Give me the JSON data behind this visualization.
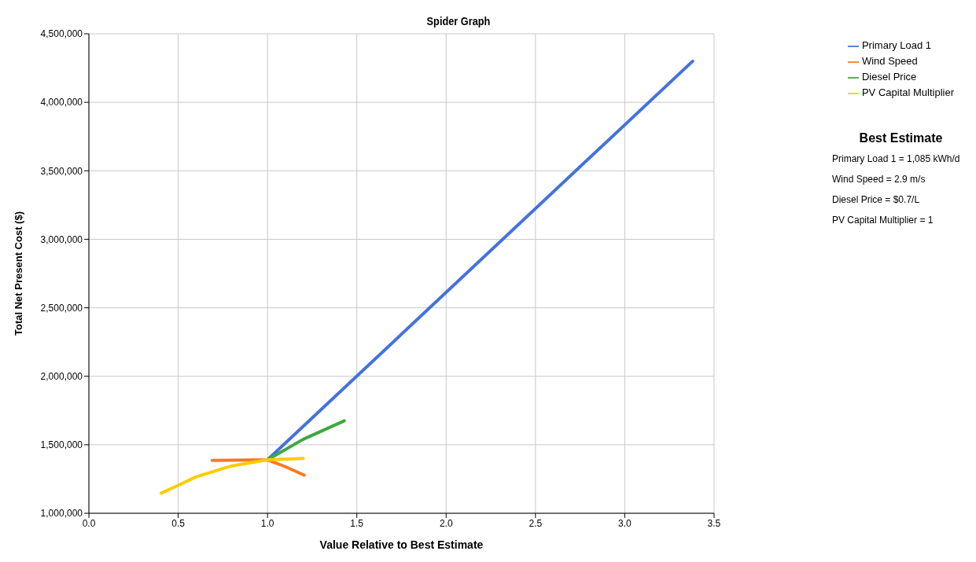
{
  "chart_data": {
    "type": "line",
    "title": "Spider Graph",
    "xlabel": "Value Relative to Best Estimate",
    "ylabel": "Total Net Present Cost ($)",
    "series": [
      {
        "name": "Primary Load 1",
        "color": "#4472dd",
        "x": [
          1.0,
          3.38
        ],
        "values": [
          1390000,
          4300000
        ]
      },
      {
        "name": "Wind Speed",
        "color": "#ff7722",
        "x": [
          0.69,
          1.0,
          1.1,
          1.205
        ],
        "values": [
          1386000,
          1390000,
          1340000,
          1278000
        ]
      },
      {
        "name": "Diesel Price",
        "color": "#3fa83f",
        "x": [
          1.0,
          1.2,
          1.43
        ],
        "values": [
          1390000,
          1540000,
          1675000
        ]
      },
      {
        "name": "PV Capital Multiplier",
        "color": "#ffcc00",
        "x": [
          0.405,
          0.5,
          0.6,
          0.8,
          1.0,
          1.2
        ],
        "values": [
          1147000,
          1204000,
          1266000,
          1346000,
          1390000,
          1400000
        ]
      }
    ],
    "xlim": [
      0,
      3.5
    ],
    "ylim": [
      1000000,
      4500000
    ],
    "xticks": [
      {
        "value": 0,
        "label": "0.0"
      },
      {
        "value": 0.5,
        "label": "0.5"
      },
      {
        "value": 1,
        "label": "1.0"
      },
      {
        "value": 1.5,
        "label": "1.5"
      },
      {
        "value": 2,
        "label": "2.0"
      },
      {
        "value": 2.5,
        "label": "2.5"
      },
      {
        "value": 3,
        "label": "3.0"
      },
      {
        "value": 3.5,
        "label": "3.5"
      }
    ],
    "yticks": [
      {
        "value": 1000000,
        "label": "1,000,000"
      },
      {
        "value": 1500000,
        "label": "1,500,000"
      },
      {
        "value": 2000000,
        "label": "2,000,000"
      },
      {
        "value": 2500000,
        "label": "2,500,000"
      },
      {
        "value": 3000000,
        "label": "3,000,000"
      },
      {
        "value": 3500000,
        "label": "3,500,000"
      },
      {
        "value": 4000000,
        "label": "4,000,000"
      },
      {
        "value": 4500000,
        "label": "4,500,000"
      }
    ],
    "grid": true,
    "legend": "top right",
    "marker": "none",
    "line_style": "solid",
    "annotations": [
      "Best Estimate",
      "Primary Load 1 = 1,085 kWh/d",
      "Wind Speed = 2.9 m/s",
      "Diesel Price = $0.7/L",
      "PV Capital Multiplier = 1"
    ]
  }
}
